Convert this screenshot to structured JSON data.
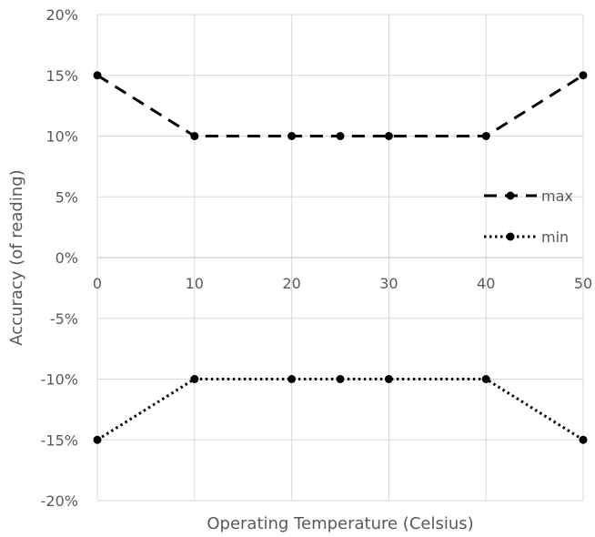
{
  "chart_data": {
    "type": "line",
    "xlabel": "Operating Temperature (Celsius)",
    "ylabel": "Accuracy (of reading)",
    "x_ticks": [
      "0",
      "10",
      "20",
      "30",
      "40",
      "50"
    ],
    "y_ticks": [
      "20%",
      "15%",
      "10%",
      "5%",
      "0%",
      "-5%",
      "-10%",
      "-15%",
      "-20%"
    ],
    "xlim": [
      0,
      50
    ],
    "ylim": [
      -20,
      20
    ],
    "grid": true,
    "legend_position": "right",
    "series": [
      {
        "name": "max",
        "style": "dashed",
        "color": "#000000",
        "x": [
          0,
          10,
          20,
          25,
          30,
          40,
          50
        ],
        "y": [
          15,
          10,
          10,
          10,
          10,
          10,
          15
        ]
      },
      {
        "name": "min",
        "style": "dotted",
        "color": "#000000",
        "x": [
          0,
          10,
          20,
          25,
          30,
          40,
          50
        ],
        "y": [
          -15,
          -10,
          -10,
          -10,
          -10,
          -10,
          -15
        ]
      }
    ]
  }
}
